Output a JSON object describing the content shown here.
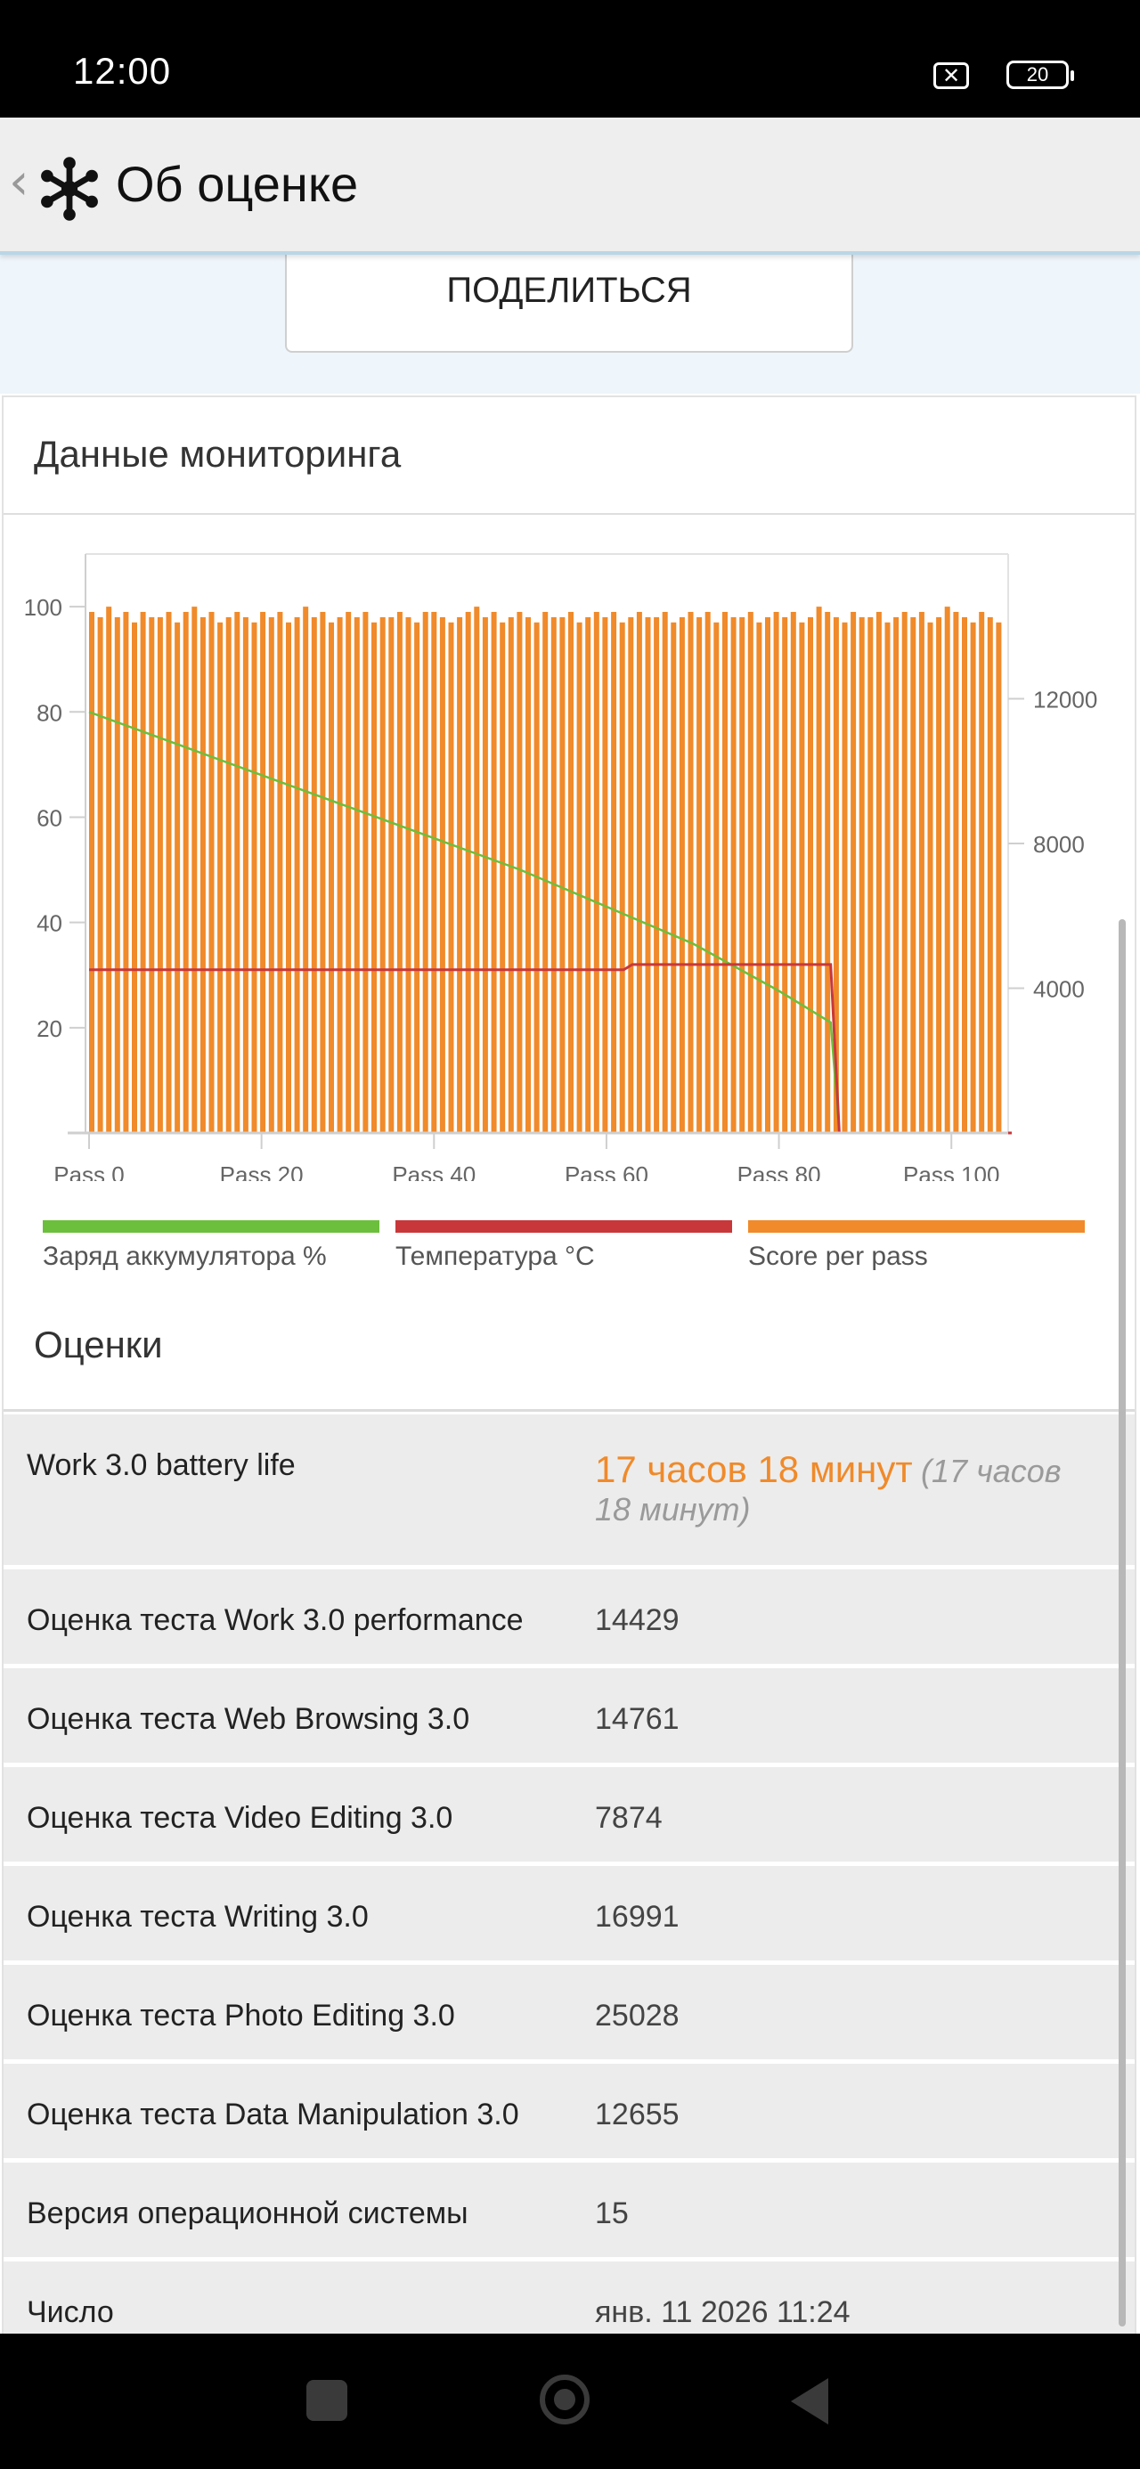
{
  "status_bar": {
    "time": "12:00",
    "battery": "20",
    "icons": [
      "no-sim-icon",
      "battery-icon"
    ]
  },
  "app_bar": {
    "title": "Об оценке",
    "icons": [
      "back-chevron-icon",
      "snowflake-logo-icon"
    ]
  },
  "share_button": {
    "label": "ПОДЕЛИТЬСЯ"
  },
  "monitoring": {
    "title": "Данные мониторинга",
    "legend": [
      {
        "label": "Заряд аккумулятора %",
        "color": "#6cbf3c"
      },
      {
        "label": "Температура °C",
        "color": "#c8383a"
      },
      {
        "label": "Score per pass",
        "color": "#f08a2a"
      }
    ]
  },
  "chart_data": {
    "type": "bar",
    "x_tick_labels": [
      "Pass 0",
      "Pass 20",
      "Pass 40",
      "Pass 60",
      "Pass 80",
      "Pass 100"
    ],
    "x_ticks": [
      0,
      20,
      40,
      60,
      80,
      100
    ],
    "xlim": [
      0,
      107
    ],
    "left_axis": {
      "ylim": [
        0,
        110
      ],
      "ticks": [
        20,
        40,
        60,
        80,
        100
      ]
    },
    "right_axis": {
      "ylim": [
        0,
        16000
      ],
      "ticks": [
        4000,
        8000,
        12000
      ]
    },
    "grid": false,
    "legend_position": "bottom",
    "bar_count": 107,
    "bar_values_left_scale": [
      99,
      98,
      100,
      98,
      99,
      97,
      99,
      98,
      98,
      99,
      97,
      99,
      100,
      98,
      99,
      97,
      98,
      99,
      98,
      97,
      99,
      98,
      99,
      97,
      98,
      100,
      98,
      99,
      97,
      98,
      99,
      98,
      99,
      97,
      98,
      98,
      99,
      98,
      97,
      99,
      99,
      98,
      97,
      98,
      99,
      100,
      98,
      99,
      97,
      98,
      99,
      98,
      97,
      99,
      98,
      98,
      99,
      97,
      98,
      99,
      98,
      99,
      97,
      98,
      99,
      98,
      98,
      99,
      97,
      98,
      99,
      98,
      99,
      97,
      99,
      98,
      98,
      99,
      97,
      98,
      99,
      98,
      99,
      97,
      98,
      100,
      99,
      98,
      97,
      99,
      98,
      98,
      99,
      97,
      98,
      99,
      98,
      99,
      97,
      98,
      100,
      99,
      98,
      97,
      99,
      98,
      97
    ],
    "series": [
      {
        "name": "Заряд аккумулятора %",
        "axis": "left",
        "x": [
          0,
          10,
          20,
          30,
          40,
          50,
          60,
          70,
          80,
          86,
          87,
          107
        ],
        "values": [
          80,
          74,
          68,
          62,
          56,
          50,
          43,
          36,
          27,
          21,
          0,
          0
        ]
      },
      {
        "name": "Температура °C",
        "axis": "left",
        "x": [
          0,
          62,
          63,
          86,
          87,
          107
        ],
        "values": [
          31,
          31,
          32,
          32,
          0,
          0
        ]
      }
    ]
  },
  "ratings": {
    "title": "Оценки",
    "rows": [
      {
        "label": "Work 3.0 battery life",
        "value": "17 часов 18 минут",
        "sub": "(17 часов 18 минут)"
      },
      {
        "label": "Оценка теста Work 3.0 performance",
        "value": "14429"
      },
      {
        "label": "Оценка теста Web Browsing 3.0",
        "value": "14761"
      },
      {
        "label": "Оценка теста Video Editing 3.0",
        "value": "7874"
      },
      {
        "label": "Оценка теста Writing 3.0",
        "value": "16991"
      },
      {
        "label": "Оценка теста Photo Editing 3.0",
        "value": "25028"
      },
      {
        "label": "Оценка теста Data Manipulation 3.0",
        "value": "12655"
      },
      {
        "label": "Версия операционной системы",
        "value": "15"
      },
      {
        "label": "Число",
        "value": "янв. 11 2026 11:24"
      }
    ]
  },
  "nav_bar": {
    "icons": [
      "recent-apps-icon",
      "home-icon",
      "back-icon"
    ]
  }
}
